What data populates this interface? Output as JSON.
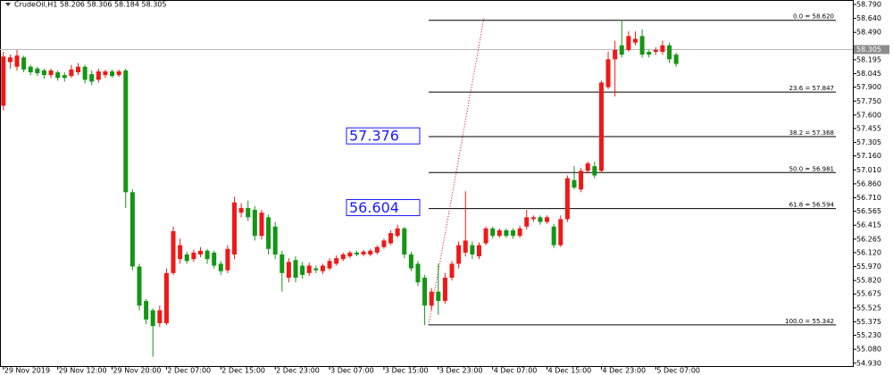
{
  "chart_data": {
    "type": "candlestick",
    "title": "CrudeOil,H1  58.206 58.306 58.184 58.305",
    "open": [
      57.7,
      58.17,
      58.12,
      58.22,
      58.12,
      58.1,
      58.08,
      58.03,
      58.06,
      58.03,
      58.02,
      58.06,
      58.12,
      58.04,
      57.98,
      58.03,
      58.07,
      58.03,
      58.08,
      56.77,
      55.97,
      55.6,
      55.5,
      55.36,
      55.36,
      55.9,
      56.05,
      56.1,
      56.05,
      56.1,
      56.14,
      56.12,
      56.0,
      55.93,
      56.1,
      56.55,
      56.6,
      56.58,
      56.3,
      56.5,
      56.4,
      56.1,
      55.85,
      56.04,
      55.98,
      55.9,
      55.95,
      55.92,
      55.95,
      56.0,
      56.05,
      56.08,
      56.12,
      56.1,
      56.1,
      56.12,
      56.18,
      56.22,
      56.3,
      56.38,
      56.1,
      56.0,
      55.85,
      55.55,
      55.7,
      55.6,
      55.85,
      56.0,
      56.12,
      56.2,
      56.08,
      56.22,
      56.38,
      56.3,
      56.36,
      56.36,
      56.3,
      56.4,
      56.48,
      56.5,
      56.45,
      56.4,
      56.2,
      56.48,
      56.9,
      56.8,
      57.0,
      57.05,
      57.0,
      57.9,
      58.2,
      58.35,
      58.3,
      58.38,
      58.45,
      58.28,
      58.28,
      58.28,
      58.35,
      58.25
    ],
    "high": [
      58.28,
      58.25,
      58.3,
      58.24,
      58.14,
      58.12,
      58.1,
      58.1,
      58.08,
      58.06,
      58.14,
      58.16,
      58.14,
      58.08,
      58.1,
      58.09,
      58.09,
      58.09,
      58.1,
      56.8,
      56.0,
      55.62,
      55.52,
      55.55,
      55.95,
      56.4,
      56.27,
      56.13,
      56.15,
      56.18,
      56.16,
      56.14,
      56.03,
      56.2,
      56.72,
      56.65,
      56.68,
      56.62,
      56.58,
      56.53,
      56.45,
      56.14,
      56.06,
      56.08,
      56.02,
      56.01,
      55.98,
      56.0,
      56.06,
      56.09,
      56.12,
      56.14,
      56.14,
      56.15,
      56.16,
      56.2,
      56.27,
      56.36,
      56.42,
      56.4,
      56.13,
      56.03,
      55.88,
      55.74,
      56.0,
      55.9,
      56.03,
      56.24,
      56.78,
      56.24,
      56.23,
      56.4,
      56.4,
      56.38,
      56.38,
      56.38,
      56.41,
      56.58,
      56.52,
      56.52,
      56.52,
      56.43,
      56.52,
      56.95,
      57.05,
      57.03,
      57.1,
      57.1,
      57.97,
      58.28,
      58.4,
      58.62,
      58.5,
      58.5,
      58.52,
      58.3,
      58.33,
      58.4,
      58.38,
      58.27
    ],
    "low": [
      57.65,
      58.1,
      58.08,
      58.06,
      58.03,
      58.02,
      57.99,
      58.0,
      57.97,
      57.96,
      58.0,
      58.03,
      57.94,
      57.92,
      57.95,
      58.0,
      58.0,
      58.01,
      56.6,
      55.93,
      55.5,
      55.35,
      55.0,
      55.32,
      55.34,
      55.88,
      56.0,
      56.0,
      56.02,
      56.07,
      56.0,
      55.95,
      55.88,
      55.9,
      56.05,
      56.5,
      56.46,
      56.25,
      56.26,
      56.1,
      56.05,
      55.7,
      55.8,
      55.8,
      55.84,
      55.87,
      55.9,
      55.89,
      55.93,
      55.98,
      56.03,
      56.06,
      56.08,
      56.08,
      56.08,
      56.1,
      56.16,
      56.2,
      56.28,
      56.06,
      55.92,
      55.76,
      55.34,
      55.5,
      55.45,
      55.57,
      55.82,
      55.95,
      56.08,
      56.05,
      56.05,
      56.2,
      56.27,
      56.28,
      56.28,
      56.27,
      56.28,
      56.37,
      56.45,
      56.42,
      56.43,
      56.17,
      56.18,
      56.45,
      56.8,
      56.77,
      56.97,
      56.92,
      56.98,
      57.88,
      57.8,
      58.22,
      58.28,
      58.35,
      58.22,
      58.22,
      58.25,
      58.25,
      58.16,
      58.12
    ],
    "close": [
      58.23,
      58.22,
      58.24,
      58.09,
      58.06,
      58.05,
      58.03,
      58.08,
      58.0,
      58.0,
      58.09,
      58.12,
      57.98,
      57.96,
      58.07,
      58.07,
      58.02,
      58.07,
      56.77,
      55.97,
      55.55,
      55.4,
      55.33,
      55.5,
      55.9,
      56.35,
      56.2,
      56.03,
      56.12,
      56.14,
      56.05,
      55.98,
      55.92,
      56.16,
      56.66,
      56.6,
      56.5,
      56.3,
      56.55,
      56.16,
      56.1,
      55.9,
      56.02,
      55.85,
      55.88,
      55.98,
      55.93,
      55.98,
      56.03,
      56.06,
      56.1,
      56.12,
      56.1,
      56.13,
      56.14,
      56.18,
      56.25,
      56.33,
      56.38,
      56.1,
      55.95,
      55.8,
      55.55,
      55.7,
      55.6,
      55.85,
      56.0,
      56.2,
      56.25,
      56.1,
      56.2,
      56.38,
      56.3,
      56.36,
      56.3,
      56.3,
      56.38,
      56.5,
      56.5,
      56.45,
      56.5,
      56.2,
      56.48,
      56.92,
      56.82,
      57.0,
      57.08,
      56.95,
      57.95,
      58.2,
      58.3,
      58.25,
      58.45,
      58.42,
      58.25,
      58.25,
      58.3,
      58.35,
      58.2,
      58.15
    ],
    "up_color": "#f01818",
    "down_color": "#149614",
    "xlim": [
      -0.5,
      125
    ],
    "xticks": [
      {
        "value": 0,
        "label": "29 Nov 2019"
      },
      {
        "value": 8,
        "label": "29 Nov 12:00"
      },
      {
        "value": 16,
        "label": "29 Nov 20:00"
      },
      {
        "value": 24,
        "label": "2 Dec 07:00"
      },
      {
        "value": 32,
        "label": "2 Dec 15:00"
      },
      {
        "value": 40,
        "label": "2 Dec 23:00"
      },
      {
        "value": 48,
        "label": "3 Dec 07:00"
      },
      {
        "value": 56,
        "label": "3 Dec 15:00"
      },
      {
        "value": 64,
        "label": "3 Dec 23:00"
      },
      {
        "value": 72,
        "label": "4 Dec 07:00"
      },
      {
        "value": 80,
        "label": "4 Dec 15:00"
      },
      {
        "value": 88,
        "label": "4 Dec 23:00"
      },
      {
        "value": 96,
        "label": "5 Dec 07:00"
      }
    ],
    "ylim": [
      54.88,
      58.838
    ],
    "yticks": [
      {
        "value": 58.79,
        "label": "58.790"
      },
      {
        "value": 58.64,
        "label": "58.640"
      },
      {
        "value": 58.49,
        "label": "58.490"
      },
      {
        "value": 58.195,
        "label": "58.195"
      },
      {
        "value": 58.045,
        "label": "58.045"
      },
      {
        "value": 57.9,
        "label": "57.900"
      },
      {
        "value": 57.75,
        "label": "57.750"
      },
      {
        "value": 57.6,
        "label": "57.600"
      },
      {
        "value": 57.455,
        "label": "57.455"
      },
      {
        "value": 57.305,
        "label": "57.305"
      },
      {
        "value": 57.16,
        "label": "57.160"
      },
      {
        "value": 57.01,
        "label": "57.010"
      },
      {
        "value": 56.86,
        "label": "56.860"
      },
      {
        "value": 56.71,
        "label": "56.710"
      },
      {
        "value": 56.565,
        "label": "56.565"
      },
      {
        "value": 56.415,
        "label": "56.415"
      },
      {
        "value": 56.265,
        "label": "56.265"
      },
      {
        "value": 56.12,
        "label": "56.120"
      },
      {
        "value": 55.97,
        "label": "55.970"
      },
      {
        "value": 55.82,
        "label": "55.820"
      },
      {
        "value": 55.675,
        "label": "55.675"
      },
      {
        "value": 55.525,
        "label": "55.525"
      },
      {
        "value": 55.375,
        "label": "55.375"
      },
      {
        "value": 55.23,
        "label": "55.230"
      },
      {
        "value": 55.08,
        "label": "55.080"
      },
      {
        "value": 54.93,
        "label": "54.930"
      }
    ],
    "current_price": {
      "value": 58.305,
      "label": "58.305"
    },
    "fibonacci": {
      "values": [
        58.62,
        57.847,
        57.368,
        56.981,
        56.594,
        55.342
      ],
      "value_labels": [
        "0.0 = 58.620",
        "23.6 = 57.847",
        "38.2 = 57.368",
        "50.0 = 56.981",
        "61.8 = 56.594",
        "100.0 = 55.342"
      ]
    },
    "annotations": [
      {
        "value": 57.376,
        "label": "57.376"
      },
      {
        "value": 56.604,
        "label": "56.604"
      }
    ]
  }
}
